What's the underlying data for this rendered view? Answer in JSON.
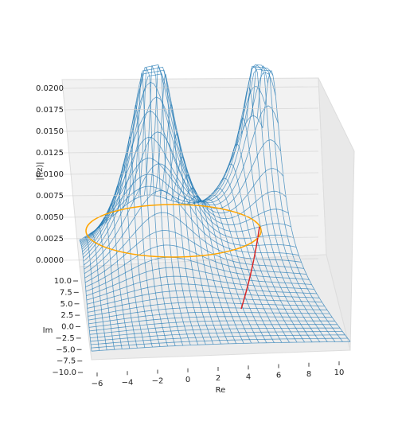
{
  "chart_data": {
    "type": "surface",
    "zlabel": "|f(z)|",
    "xlabel": "Re",
    "ylabel": "Im",
    "zlim": [
      0,
      0.02
    ],
    "zticks": [
      {
        "value": 0,
        "label": "0.0000"
      },
      {
        "value": 0.0025,
        "label": "0.0025"
      },
      {
        "value": 0.005,
        "label": "0.0050"
      },
      {
        "value": 0.0075,
        "label": "0.0075"
      },
      {
        "value": 0.01,
        "label": "0.0100"
      },
      {
        "value": 0.0125,
        "label": "0.0125"
      },
      {
        "value": 0.015,
        "label": "0.0150"
      },
      {
        "value": 0.0175,
        "label": "0.0175"
      },
      {
        "value": 0.02,
        "label": "0.0200"
      }
    ],
    "xlim": [
      -6,
      10
    ],
    "xticks": [
      {
        "value": -6,
        "label": "−6"
      },
      {
        "value": -4,
        "label": "−4"
      },
      {
        "value": -2,
        "label": "−2"
      },
      0,
      2,
      4,
      6,
      8,
      10
    ],
    "ylim": [
      -10,
      10
    ],
    "yticks": [
      {
        "value": 10,
        "label": "10.0"
      },
      {
        "value": 7.5,
        "label": "7.5"
      },
      {
        "value": 5,
        "label": "5.0"
      },
      {
        "value": 2.5,
        "label": "2.5"
      },
      {
        "value": 0,
        "label": "0.0"
      },
      {
        "value": -2.5,
        "label": "−2.5"
      },
      {
        "value": -5,
        "label": "−5.0"
      },
      {
        "value": -7.5,
        "label": "−7.5"
      },
      {
        "value": -10,
        "label": "−10.0"
      }
    ],
    "color": "#1f77b4"
  }
}
